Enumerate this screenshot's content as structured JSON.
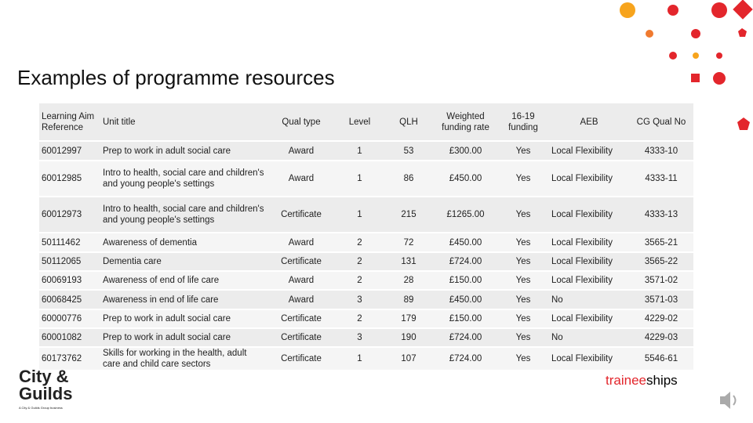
{
  "title": "Examples of programme resources",
  "table": {
    "header": [
      "Learning Aim Reference",
      "Unit title",
      "Qual type",
      "Level",
      "QLH",
      "Weighted funding rate",
      "16-19 funding",
      "AEB",
      "CG Qual No"
    ],
    "rows": [
      [
        "60012997",
        "Prep to work in adult social care",
        "Award",
        "1",
        "53",
        "£300.00",
        "Yes",
        "Local Flexibility",
        "4333-10"
      ],
      [
        "60012985",
        "Intro to health, social care and children's and young people's settings",
        "Award",
        "1",
        "86",
        "£450.00",
        "Yes",
        "Local Flexibility",
        "4333-11"
      ],
      [
        "60012973",
        "Intro to health, social care and children's and young people's settings",
        "Certificate",
        "1",
        "215",
        "£1265.00",
        "Yes",
        "Local Flexibility",
        "4333-13"
      ],
      [
        "50111462",
        "Awareness of dementia",
        "Award",
        "2",
        "72",
        "£450.00",
        "Yes",
        "Local Flexibility",
        "3565-21"
      ],
      [
        "50112065",
        "Dementia care",
        "Certificate",
        "2",
        "131",
        "£724.00",
        "Yes",
        "Local Flexibility",
        "3565-22"
      ],
      [
        "60069193",
        "Awareness of end of life care",
        "Award",
        "2",
        "28",
        "£150.00",
        "Yes",
        "Local Flexibility",
        "3571-02"
      ],
      [
        "60068425",
        "Awareness in end of life care",
        "Award",
        "3",
        "89",
        "£450.00",
        "Yes",
        "No",
        "3571-03"
      ],
      [
        "60000776",
        "Prep to work in adult social care",
        "Certificate",
        "2",
        "179",
        "£150.00",
        "Yes",
        "Local Flexibility",
        "4229-02"
      ],
      [
        "60001082",
        "Prep to work in adult social care",
        "Certificate",
        "3",
        "190",
        "£724.00",
        "Yes",
        "No",
        "4229-03"
      ],
      [
        "60173762",
        "Skills for working in the health, adult care and child care sectors",
        "Certificate",
        "1",
        "107",
        "£724.00",
        "Yes",
        "Local Flexibility",
        "5546-61"
      ]
    ]
  },
  "logo": {
    "line1": "City &",
    "line2": "Guilds",
    "tagline": "A City & Guilds Group business"
  },
  "brand": {
    "part1": "trainee",
    "part2": "ships"
  }
}
